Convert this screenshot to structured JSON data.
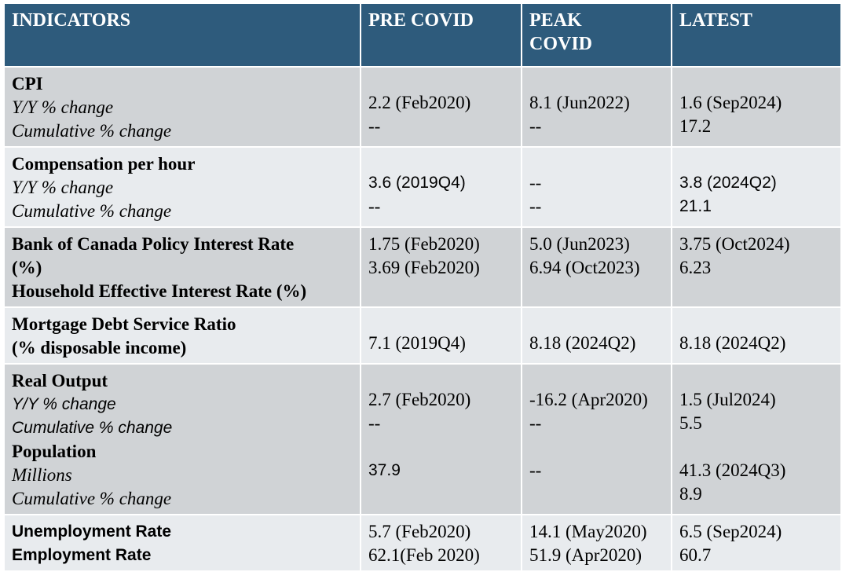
{
  "header": [
    "INDICATORS",
    "PRE COVID",
    "PEAK COVID",
    "LATEST"
  ],
  "rows": [
    {
      "indicator": [
        "CPI",
        "Y/Y % change",
        "Cumulative % change"
      ],
      "pre": [
        "2.2 (Feb2020)",
        "--"
      ],
      "peak": [
        "8.1 (Jun2022)",
        "--"
      ],
      "latest": [
        "1.6 (Sep2024)",
        "17.2"
      ]
    },
    {
      "indicator": [
        "Compensation per hour",
        "Y/Y % change",
        "Cumulative % change"
      ],
      "pre": [
        "3.6 (2019Q4)",
        "--"
      ],
      "peak": [
        "--",
        "--"
      ],
      "latest": [
        "3.8 (2024Q2)",
        "21.1"
      ]
    },
    {
      "indicator": [
        "Bank of Canada Policy Interest Rate",
        "(%)",
        "Household Effective Interest Rate (%)"
      ],
      "pre": [
        "1.75 (Feb2020)",
        "3.69 (Feb2020)"
      ],
      "peak": [
        "5.0 (Jun2023)",
        "6.94 (Oct2023)"
      ],
      "latest": [
        "3.75 (Oct2024)",
        "6.23"
      ]
    },
    {
      "indicator": [
        "Mortgage Debt Service Ratio",
        "(% disposable income)"
      ],
      "pre": [
        "7.1 (2019Q4)"
      ],
      "peak": [
        "8.18 (2024Q2)"
      ],
      "latest": [
        "8.18 (2024Q2)"
      ]
    },
    {
      "indicator": [
        "Real Output",
        "Y/Y % change",
        "Cumulative % change",
        "Population",
        "Millions",
        "Cumulative % change"
      ],
      "pre": [
        "2.7 (Feb2020)",
        "--",
        "37.9"
      ],
      "peak": [
        "-16.2 (Apr2020)",
        "--",
        "--"
      ],
      "latest": [
        "1.5 (Jul2024)",
        "5.5",
        "41.3 (2024Q3)",
        "8.9"
      ]
    },
    {
      "indicator": [
        "Unemployment Rate",
        "Employment Rate"
      ],
      "pre": [
        "5.7 (Feb2020)",
        "62.1(Feb 2020)"
      ],
      "peak": [
        "14.1 (May2020)",
        "51.9 (Apr2020)"
      ],
      "latest": [
        "6.5 (Sep2024)",
        "60.7"
      ]
    }
  ]
}
